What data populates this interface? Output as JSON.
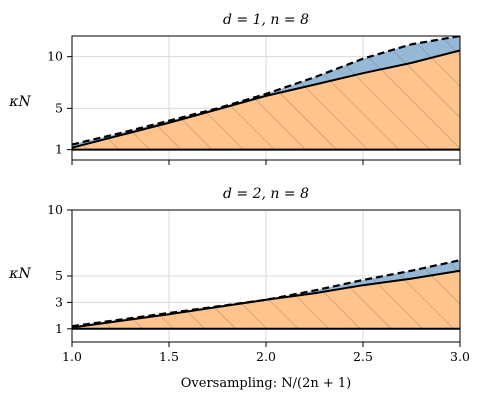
{
  "colors": {
    "upper_fill": "#94b8d6",
    "lower_fill": "#ffc38c",
    "hatch": "#6b6b6b",
    "grid": "#d9d9d9",
    "curve": "#000000"
  },
  "chart_data": [
    {
      "type": "area",
      "title": "d = 1, n = 8",
      "ylabel": "κN",
      "xlabel": "",
      "xlim": [
        1.0,
        3.0
      ],
      "ylim": [
        0,
        12
      ],
      "yticks": [
        1,
        5,
        10
      ],
      "ytick_labels": [
        "1",
        "5",
        "10"
      ],
      "xticks": [
        1.0,
        1.5,
        2.0,
        2.5,
        3.0
      ],
      "xtick_labels": [
        "",
        "",
        "",
        "",
        ""
      ],
      "grid": true,
      "baseline": 1,
      "series": [
        {
          "style": "dashed",
          "x": [
            1.0,
            1.25,
            1.5,
            1.75,
            2.0,
            2.25,
            2.5,
            2.75,
            3.0
          ],
          "values": [
            1.5,
            2.6,
            3.8,
            5.0,
            6.4,
            8.0,
            9.8,
            11.2,
            12.0
          ]
        },
        {
          "style": "solid",
          "x": [
            1.0,
            1.25,
            1.5,
            1.75,
            2.0,
            2.25,
            2.5,
            2.75,
            3.0
          ],
          "values": [
            1.2,
            2.4,
            3.6,
            4.9,
            6.2,
            7.3,
            8.4,
            9.4,
            10.6
          ]
        }
      ]
    },
    {
      "type": "area",
      "title": "d = 2, n = 8",
      "ylabel": "κN",
      "xlabel": "Oversampling: N/(2n + 1)",
      "xlim": [
        1.0,
        3.0
      ],
      "ylim": [
        0,
        10
      ],
      "yticks": [
        1,
        3,
        5,
        10
      ],
      "ytick_labels": [
        "1",
        "3",
        "5",
        "10"
      ],
      "xticks": [
        1.0,
        1.5,
        2.0,
        2.5,
        3.0
      ],
      "xtick_labels": [
        "1.0",
        "1.5",
        "2.0",
        "2.5",
        "3.0"
      ],
      "grid": true,
      "baseline": 1,
      "series": [
        {
          "style": "dashed",
          "x": [
            1.0,
            1.25,
            1.5,
            1.75,
            2.0,
            2.25,
            2.5,
            2.75,
            3.0
          ],
          "values": [
            1.2,
            1.7,
            2.2,
            2.7,
            3.2,
            3.9,
            4.7,
            5.4,
            6.2
          ]
        },
        {
          "style": "solid",
          "x": [
            1.0,
            1.25,
            1.5,
            1.75,
            2.0,
            2.25,
            2.5,
            2.75,
            3.0
          ],
          "values": [
            1.1,
            1.6,
            2.1,
            2.65,
            3.2,
            3.7,
            4.3,
            4.8,
            5.4
          ]
        }
      ]
    }
  ]
}
